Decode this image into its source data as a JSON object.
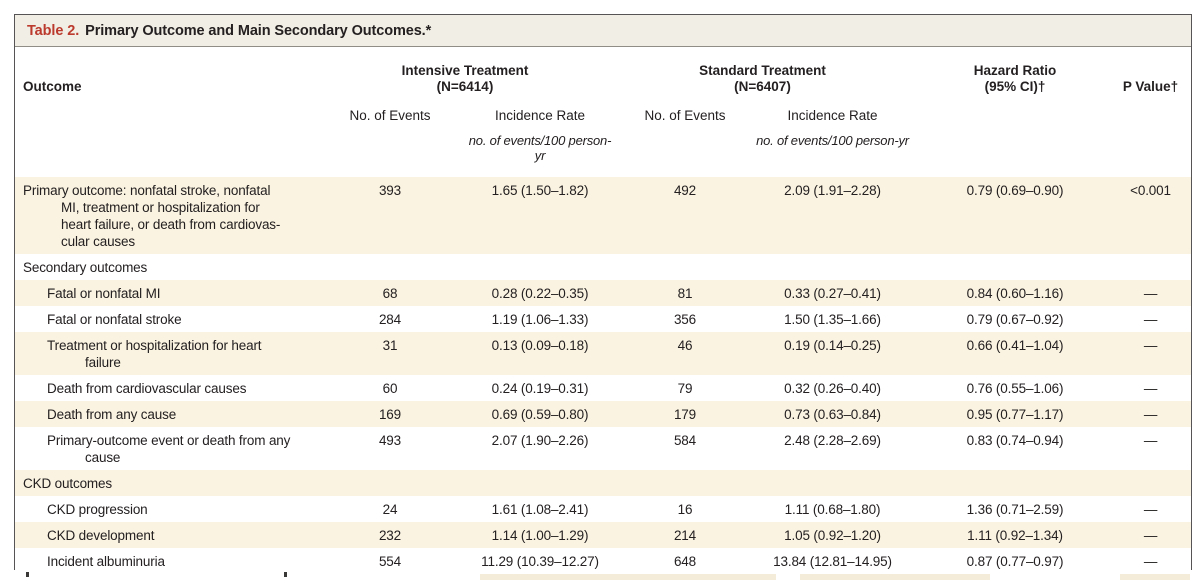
{
  "table": {
    "number_label": "Table 2.",
    "title": "Primary Outcome and Main Secondary Outcomes.*",
    "columns": {
      "outcome": "Outcome",
      "intensive": {
        "name": "Intensive Treatment",
        "n": "(N=6414)"
      },
      "standard": {
        "name": "Standard Treatment",
        "n": "(N=6407)"
      },
      "hazard": {
        "line1": "Hazard Ratio",
        "line2": "(95% CI)†"
      },
      "p_value": "P Value†",
      "events_subheader": "No. of Events",
      "rate_subheader": "Incidence Rate",
      "units": "no. of events/100 person-yr"
    },
    "rows": [
      {
        "section": false,
        "indent": 0,
        "outcome_lines": [
          "Primary outcome: nonfatal stroke, nonfatal",
          "MI, treatment or hospitalization for",
          "heart failure, or death from cardiovas-",
          "cular causes"
        ],
        "intensive_events": "393",
        "intensive_rate": "1.65 (1.50–1.82)",
        "standard_events": "492",
        "standard_rate": "2.09 (1.91–2.28)",
        "hazard_ratio": "0.79 (0.69–0.90)",
        "p_value": "<0.001"
      },
      {
        "section": true,
        "indent": 0,
        "outcome_lines": [
          "Secondary outcomes"
        ],
        "intensive_events": "",
        "intensive_rate": "",
        "standard_events": "",
        "standard_rate": "",
        "hazard_ratio": "",
        "p_value": ""
      },
      {
        "section": false,
        "indent": 1,
        "outcome_lines": [
          "Fatal or nonfatal MI"
        ],
        "intensive_events": "68",
        "intensive_rate": "0.28 (0.22–0.35)",
        "standard_events": "81",
        "standard_rate": "0.33 (0.27–0.41)",
        "hazard_ratio": "0.84 (0.60–1.16)",
        "p_value": "—"
      },
      {
        "section": false,
        "indent": 1,
        "outcome_lines": [
          "Fatal or nonfatal stroke"
        ],
        "intensive_events": "284",
        "intensive_rate": "1.19 (1.06–1.33)",
        "standard_events": "356",
        "standard_rate": "1.50 (1.35–1.66)",
        "hazard_ratio": "0.79 (0.67–0.92)",
        "p_value": "—"
      },
      {
        "section": false,
        "indent": 1,
        "outcome_lines": [
          "Treatment or hospitalization for heart",
          "failure"
        ],
        "intensive_events": "31",
        "intensive_rate": "0.13 (0.09–0.18)",
        "standard_events": "46",
        "standard_rate": "0.19 (0.14–0.25)",
        "hazard_ratio": "0.66 (0.41–1.04)",
        "p_value": "—"
      },
      {
        "section": false,
        "indent": 1,
        "outcome_lines": [
          "Death from cardiovascular causes"
        ],
        "intensive_events": "60",
        "intensive_rate": "0.24 (0.19–0.31)",
        "standard_events": "79",
        "standard_rate": "0.32 (0.26–0.40)",
        "hazard_ratio": "0.76 (0.55–1.06)",
        "p_value": "—"
      },
      {
        "section": false,
        "indent": 1,
        "outcome_lines": [
          "Death from any cause"
        ],
        "intensive_events": "169",
        "intensive_rate": "0.69 (0.59–0.80)",
        "standard_events": "179",
        "standard_rate": "0.73 (0.63–0.84)",
        "hazard_ratio": "0.95 (0.77–1.17)",
        "p_value": "—"
      },
      {
        "section": false,
        "indent": 1,
        "outcome_lines": [
          "Primary-outcome event or death from any",
          "cause"
        ],
        "intensive_events": "493",
        "intensive_rate": "2.07 (1.90–2.26)",
        "standard_events": "584",
        "standard_rate": "2.48 (2.28–2.69)",
        "hazard_ratio": "0.83 (0.74–0.94)",
        "p_value": "—"
      },
      {
        "section": true,
        "indent": 0,
        "outcome_lines": [
          "CKD outcomes"
        ],
        "intensive_events": "",
        "intensive_rate": "",
        "standard_events": "",
        "standard_rate": "",
        "hazard_ratio": "",
        "p_value": ""
      },
      {
        "section": false,
        "indent": 1,
        "outcome_lines": [
          "CKD progression"
        ],
        "intensive_events": "24",
        "intensive_rate": "1.61 (1.08–2.41)",
        "standard_events": "16",
        "standard_rate": "1.11 (0.68–1.80)",
        "hazard_ratio": "1.36 (0.71–2.59)",
        "p_value": "—"
      },
      {
        "section": false,
        "indent": 1,
        "outcome_lines": [
          "CKD development"
        ],
        "intensive_events": "232",
        "intensive_rate": "1.14 (1.00–1.29)",
        "standard_events": "214",
        "standard_rate": "1.05 (0.92–1.20)",
        "hazard_ratio": "1.11 (0.92–1.34)",
        "p_value": "—"
      },
      {
        "section": false,
        "indent": 1,
        "outcome_lines": [
          "Incident albuminuria"
        ],
        "intensive_events": "554",
        "intensive_rate": "11.29 (10.39–12.27)",
        "standard_events": "648",
        "standard_rate": "13.84 (12.81–14.95)",
        "hazard_ratio": "0.87 (0.77–0.97)",
        "p_value": "—"
      }
    ]
  },
  "colors": {
    "accent_red": "#bb3a2d",
    "row_shade": "#faf3e1",
    "titlebar_bg": "#f1eee5",
    "frame_border": "#565454"
  }
}
